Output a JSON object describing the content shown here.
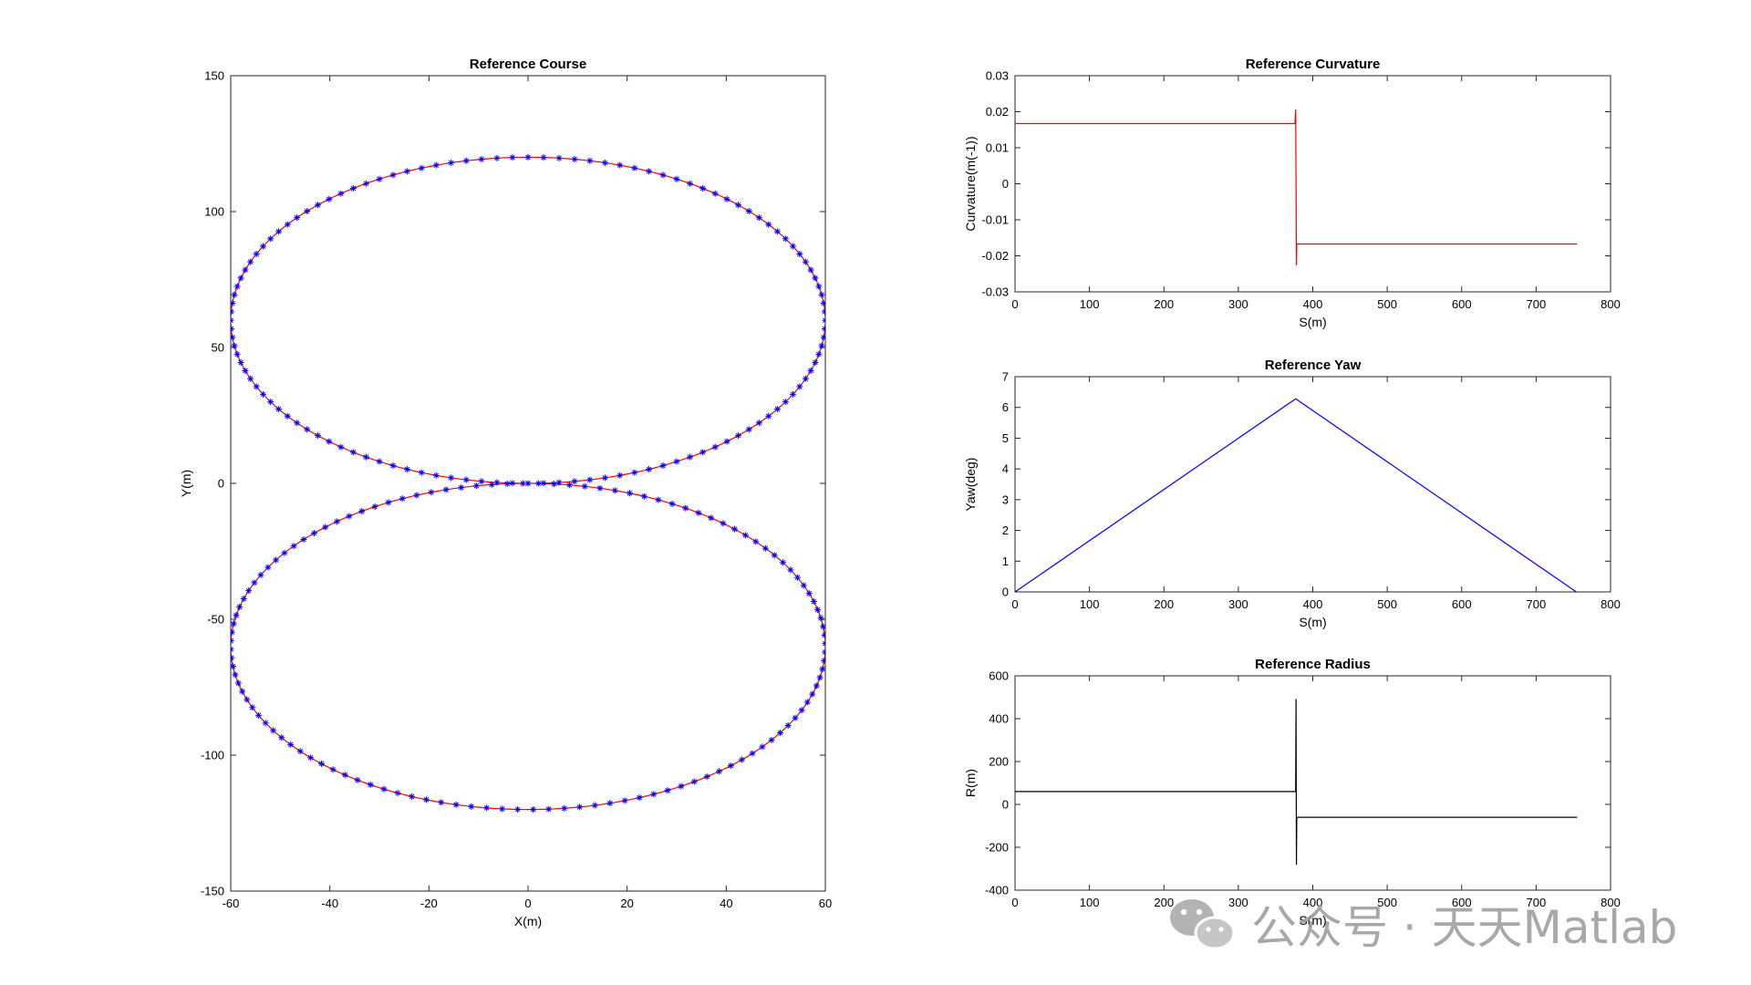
{
  "chart_data": [
    {
      "type": "line",
      "title": "Reference Course",
      "xlabel": "X(m)",
      "ylabel": "Y(m)",
      "xlim": [
        -60,
        60
      ],
      "ylim": [
        -150,
        150
      ],
      "xticks": [
        -60,
        -40,
        -20,
        0,
        20,
        40,
        60
      ],
      "yticks": [
        -150,
        -100,
        -50,
        0,
        50,
        100,
        150
      ],
      "series": [
        {
          "type": "parametric",
          "shape": "figure-eight of two ellipses",
          "center_x": 0,
          "semi_axis_x": 60,
          "semi_axis_y": 60,
          "upper_center_y": 60,
          "lower_center_y": -60,
          "line_color": "#ff0000",
          "marker": "*",
          "marker_color": "#0000ff"
        }
      ],
      "grid": false
    },
    {
      "type": "line",
      "title": "Reference Curvature",
      "xlabel": "S(m)",
      "ylabel": "Curvature(m(-1))",
      "xlim": [
        0,
        800
      ],
      "ylim": [
        -0.03,
        0.03
      ],
      "xticks": [
        0,
        100,
        200,
        300,
        400,
        500,
        600,
        700,
        800
      ],
      "yticks": [
        -0.03,
        -0.02,
        -0.01,
        0,
        0.01,
        0.02,
        0.03
      ],
      "series": [
        {
          "color": "#ff0000",
          "x": [
            0,
            376,
            377,
            377.5,
            378,
            378.5,
            379,
            380,
            755
          ],
          "y": [
            0.0167,
            0.0167,
            0.0205,
            0.0,
            -0.0225,
            -0.0167,
            -0.0167,
            -0.0167,
            -0.0167
          ]
        }
      ],
      "grid": false
    },
    {
      "type": "line",
      "title": "Reference Yaw",
      "xlabel": "S(m)",
      "ylabel": "Yaw(deg)",
      "xlim": [
        0,
        800
      ],
      "ylim": [
        0,
        7
      ],
      "xticks": [
        0,
        100,
        200,
        300,
        400,
        500,
        600,
        700,
        800
      ],
      "yticks": [
        0,
        1,
        2,
        3,
        4,
        5,
        6,
        7
      ],
      "series": [
        {
          "color": "#0000ff",
          "x": [
            0,
            377,
            754
          ],
          "y": [
            0,
            6.28,
            0
          ]
        }
      ],
      "grid": false
    },
    {
      "type": "line",
      "title": "Reference Radius",
      "xlabel": "S(m)",
      "ylabel": "R(m)",
      "xlim": [
        0,
        800
      ],
      "ylim": [
        -400,
        600
      ],
      "xticks": [
        0,
        100,
        200,
        300,
        400,
        500,
        600,
        700,
        800
      ],
      "yticks": [
        -400,
        -200,
        0,
        200,
        400,
        600
      ],
      "series": [
        {
          "color": "#000000",
          "x": [
            0,
            376,
            377,
            377.5,
            378,
            378.5,
            379,
            380,
            755
          ],
          "y": [
            60,
            60,
            60,
            490,
            -280,
            -60,
            -60,
            -60,
            -60
          ]
        }
      ],
      "grid": false
    }
  ],
  "watermark": {
    "text": "公众号 · 天天Matlab"
  }
}
